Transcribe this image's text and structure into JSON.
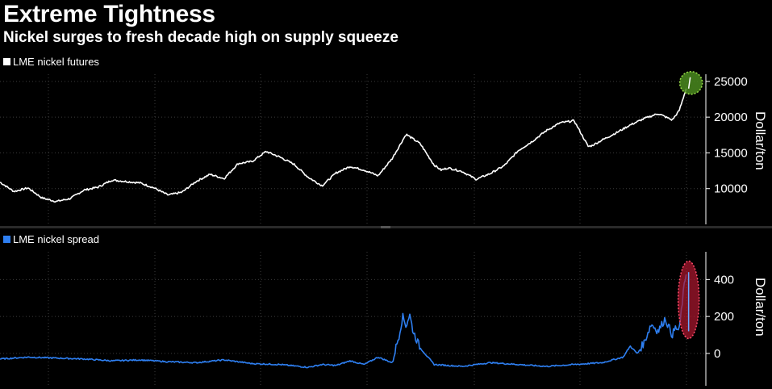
{
  "header": {
    "title": "Extreme Tightness",
    "subtitle": "Nickel surges to fresh decade high on supply squeeze"
  },
  "chart_data": [
    {
      "type": "line",
      "series": [
        {
          "name": "LME nickel futures",
          "color": "#ffffff",
          "x": [
            0,
            0.02,
            0.04,
            0.06,
            0.08,
            0.1,
            0.12,
            0.14,
            0.16,
            0.18,
            0.2,
            0.22,
            0.24,
            0.26,
            0.28,
            0.3,
            0.32,
            0.34,
            0.36,
            0.38,
            0.4,
            0.42,
            0.44,
            0.46,
            0.48,
            0.5,
            0.52,
            0.54,
            0.56,
            0.58,
            0.6,
            0.62,
            0.63,
            0.64,
            0.66,
            0.68,
            0.7,
            0.72,
            0.74,
            0.76,
            0.78,
            0.8,
            0.82,
            0.84,
            0.845,
            0.86,
            0.88,
            0.9,
            0.92,
            0.94,
            0.96,
            0.97,
            0.98
          ],
          "values": [
            10900,
            9600,
            10100,
            8700,
            8200,
            8600,
            9800,
            10200,
            11200,
            11000,
            10800,
            10100,
            9100,
            9500,
            11000,
            12000,
            11400,
            13500,
            13800,
            15200,
            14400,
            13400,
            11600,
            10400,
            12200,
            13100,
            12600,
            11800,
            14200,
            17600,
            16300,
            13300,
            12600,
            12900,
            12400,
            11300,
            12100,
            13200,
            15300,
            16600,
            18100,
            19200,
            19500,
            15900,
            16000,
            16800,
            17800,
            18900,
            19800,
            20500,
            19600,
            20900,
            24000
          ]
        }
      ],
      "yticks": [
        10000,
        15000,
        20000,
        25000
      ],
      "ylim": [
        5000,
        26000
      ],
      "ylabel": "Dollar/ton",
      "grid": true,
      "legend_position": "top-left",
      "annotation": "green highlight circle on latest value"
    },
    {
      "type": "line",
      "series": [
        {
          "name": "LME nickel spread",
          "color": "#2e7ff1",
          "x": [
            0,
            0.04,
            0.08,
            0.12,
            0.16,
            0.2,
            0.24,
            0.28,
            0.32,
            0.36,
            0.4,
            0.44,
            0.46,
            0.48,
            0.5,
            0.52,
            0.54,
            0.56,
            0.57,
            0.575,
            0.58,
            0.585,
            0.59,
            0.6,
            0.62,
            0.66,
            0.7,
            0.74,
            0.78,
            0.82,
            0.86,
            0.89,
            0.9,
            0.91,
            0.92,
            0.93,
            0.94,
            0.95,
            0.96,
            0.965,
            0.97,
            0.975,
            0.98
          ],
          "values": [
            -30,
            -20,
            -25,
            -30,
            -40,
            -35,
            -45,
            -50,
            -35,
            -55,
            -60,
            -75,
            -60,
            -65,
            -40,
            -60,
            -20,
            -50,
            100,
            200,
            150,
            210,
            120,
            30,
            -60,
            -70,
            -50,
            -60,
            -70,
            -60,
            -50,
            -20,
            40,
            0,
            60,
            160,
            120,
            190,
            100,
            140,
            120,
            300,
            440
          ]
        }
      ],
      "yticks": [
        0,
        200,
        400
      ],
      "ylim": [
        -175,
        550
      ],
      "ylabel": "Dollar/ton",
      "grid": true,
      "legend_position": "top-left",
      "annotation": "red highlight ellipse on latest spike"
    }
  ]
}
